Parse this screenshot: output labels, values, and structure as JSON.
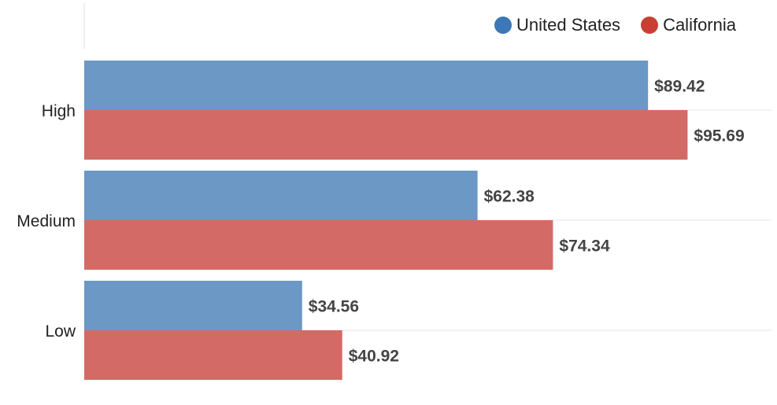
{
  "chart_data": {
    "type": "bar",
    "orientation": "horizontal",
    "categories": [
      "High",
      "Medium",
      "Low"
    ],
    "series": [
      {
        "name": "United States",
        "values": [
          89.42,
          62.38,
          34.56
        ],
        "labels": [
          "$89.42",
          "$62.38",
          "$34.56"
        ],
        "color": "#6b98c4",
        "legend_color": "#3c77b8"
      },
      {
        "name": "California",
        "values": [
          95.69,
          74.34,
          40.92
        ],
        "labels": [
          "$95.69",
          "$74.34",
          "$40.92"
        ],
        "color": "#d46a66",
        "legend_color": "#c93f33"
      }
    ],
    "xlim": [
      0,
      109
    ],
    "grid": true,
    "legend_position": "top-right"
  }
}
